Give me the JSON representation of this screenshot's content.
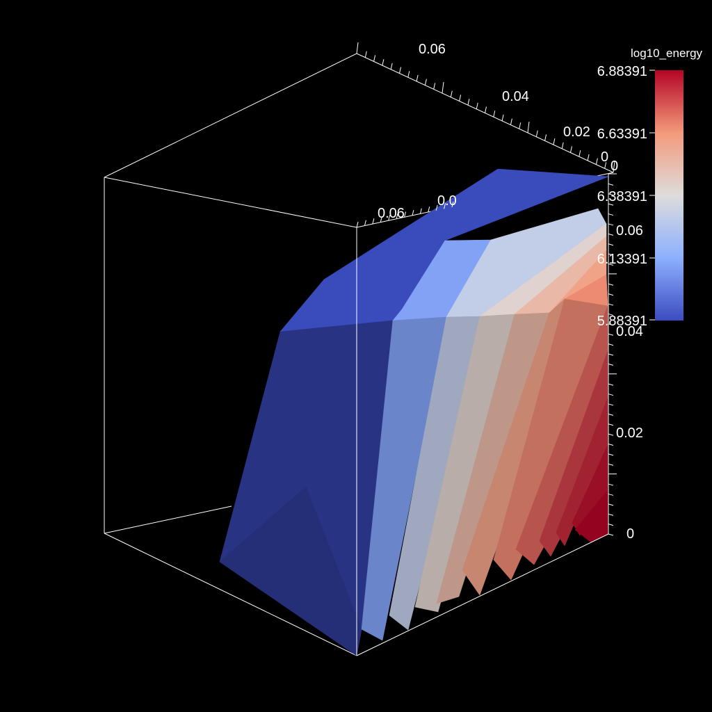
{
  "chart_data": {
    "type": "surface3d",
    "colorbar": {
      "title": "log10_energy",
      "ticks": [
        "6.88391",
        "6.63391",
        "6.38391",
        "6.13391",
        "5.88391"
      ],
      "range": [
        5.88391,
        6.88391
      ],
      "colormap": "coolwarm",
      "colors": {
        "low": "#3b4cc0",
        "mid": "#dddcdc",
        "high": "#b40426"
      }
    },
    "axes": {
      "top_back_axis_ticks": [
        "0.06",
        "0.04",
        "0.02",
        "0"
      ],
      "top_front_axis_ticks": [
        "0.06",
        "0.0"
      ],
      "right_vertical_axis_ticks": [
        "0",
        "0.06",
        "0.04",
        "0.02",
        "0"
      ]
    },
    "surface": {
      "levels": [
        {
          "value": 5.884
        },
        {
          "value": 6.1
        },
        {
          "value": 6.3
        },
        {
          "value": 6.42
        },
        {
          "value": 6.52
        },
        {
          "value": 6.6
        },
        {
          "value": 6.66
        },
        {
          "value": 6.72
        },
        {
          "value": 6.78
        },
        {
          "value": 6.82
        },
        {
          "value": 6.86
        },
        {
          "value": 6.884
        }
      ]
    }
  }
}
